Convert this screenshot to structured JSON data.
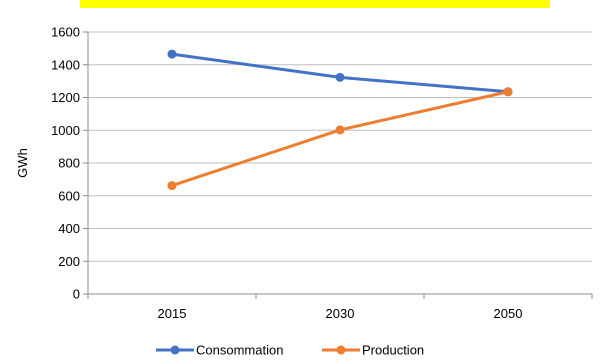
{
  "chart_data": {
    "type": "line",
    "title": "",
    "xlabel": "",
    "ylabel": "GWh",
    "categories": [
      "2015",
      "2030",
      "2050"
    ],
    "ylim": [
      0,
      1600
    ],
    "yticks": [
      0,
      200,
      400,
      600,
      800,
      1000,
      1200,
      1400,
      1600
    ],
    "grid": true,
    "legend": "bottom",
    "series": [
      {
        "name": "Consommation",
        "color": "#4472c4",
        "values": [
          1465,
          1323,
          1235
        ]
      },
      {
        "name": "Production",
        "color": "#ed7d31",
        "values": [
          662,
          1002,
          1235
        ]
      }
    ]
  }
}
